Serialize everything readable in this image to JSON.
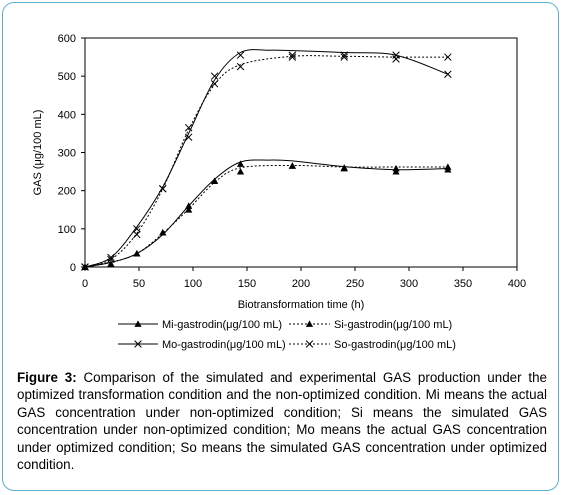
{
  "chart_data": {
    "type": "line",
    "xlabel": "Biotransformation time (h)",
    "ylabel": "GAS (μg/100 mL)",
    "xlim": [
      0,
      400
    ],
    "ylim": [
      0,
      600
    ],
    "x_ticks": [
      0,
      50,
      100,
      150,
      200,
      250,
      300,
      350,
      400
    ],
    "y_ticks": [
      0,
      100,
      200,
      300,
      400,
      500,
      600
    ],
    "grid": false,
    "legend_position": "below-plot",
    "series": [
      {
        "name": "Mi-gastrodin(μg/100 mL)",
        "line_style": "solid",
        "marker": "triangle",
        "color": "#000000",
        "points": [
          [
            0,
            0
          ],
          [
            24,
            8
          ],
          [
            48,
            35
          ],
          [
            72,
            90
          ],
          [
            96,
            160
          ],
          [
            120,
            225
          ],
          [
            144,
            270
          ],
          [
            192,
            265
          ],
          [
            240,
            260
          ],
          [
            288,
            250
          ],
          [
            336,
            255
          ]
        ],
        "curve": [
          [
            0,
            0
          ],
          [
            24,
            12
          ],
          [
            48,
            35
          ],
          [
            72,
            85
          ],
          [
            96,
            160
          ],
          [
            120,
            230
          ],
          [
            144,
            275
          ],
          [
            170,
            280
          ],
          [
            192,
            278
          ],
          [
            240,
            263
          ],
          [
            288,
            255
          ],
          [
            336,
            258
          ]
        ]
      },
      {
        "name": "Si-gastrodin(μg/100 mL)",
        "line_style": "dotted",
        "marker": "triangle",
        "color": "#000000",
        "points": [
          [
            0,
            0
          ],
          [
            24,
            8
          ],
          [
            48,
            35
          ],
          [
            72,
            90
          ],
          [
            96,
            150
          ],
          [
            120,
            225
          ],
          [
            144,
            250
          ],
          [
            192,
            265
          ],
          [
            240,
            258
          ],
          [
            288,
            258
          ],
          [
            336,
            262
          ]
        ],
        "curve": [
          [
            0,
            0
          ],
          [
            24,
            12
          ],
          [
            48,
            35
          ],
          [
            72,
            88
          ],
          [
            96,
            152
          ],
          [
            120,
            222
          ],
          [
            144,
            260
          ],
          [
            192,
            266
          ],
          [
            240,
            262
          ],
          [
            288,
            262
          ],
          [
            336,
            262
          ]
        ]
      },
      {
        "name": "Mo-gastrodin(μg/100 mL)",
        "line_style": "solid",
        "marker": "x",
        "color": "#000000",
        "points": [
          [
            0,
            0
          ],
          [
            24,
            25
          ],
          [
            48,
            100
          ],
          [
            72,
            205
          ],
          [
            96,
            340
          ],
          [
            120,
            500
          ],
          [
            144,
            555
          ],
          [
            192,
            550
          ],
          [
            240,
            555
          ],
          [
            288,
            555
          ],
          [
            336,
            505
          ]
        ],
        "curve": [
          [
            0,
            0
          ],
          [
            24,
            25
          ],
          [
            48,
            105
          ],
          [
            72,
            210
          ],
          [
            96,
            350
          ],
          [
            120,
            490
          ],
          [
            144,
            562
          ],
          [
            170,
            568
          ],
          [
            192,
            567
          ],
          [
            240,
            562
          ],
          [
            288,
            555
          ],
          [
            336,
            505
          ]
        ]
      },
      {
        "name": "So-gastrodin(μg/100 mL)",
        "line_style": "dotted",
        "marker": "x",
        "color": "#000000",
        "points": [
          [
            0,
            0
          ],
          [
            24,
            20
          ],
          [
            48,
            85
          ],
          [
            72,
            205
          ],
          [
            96,
            365
          ],
          [
            120,
            480
          ],
          [
            144,
            525
          ],
          [
            192,
            555
          ],
          [
            240,
            550
          ],
          [
            288,
            545
          ],
          [
            336,
            550
          ]
        ],
        "curve": [
          [
            0,
            0
          ],
          [
            24,
            20
          ],
          [
            48,
            88
          ],
          [
            72,
            205
          ],
          [
            96,
            360
          ],
          [
            120,
            478
          ],
          [
            144,
            530
          ],
          [
            192,
            552
          ],
          [
            240,
            552
          ],
          [
            288,
            550
          ],
          [
            336,
            550
          ]
        ]
      }
    ]
  },
  "caption": {
    "label": "Figure 3:",
    "text": " Comparison of the simulated and experimental GAS production under the optimized transformation condition and the non-optimized condition. Mi means the actual GAS concentration under non-optimized condition; Si means the simulated GAS concentration under non-optimized condition; Mo means the actual GAS concentration under optimized condition; So means the simulated GAS concentration under optimized condition."
  }
}
